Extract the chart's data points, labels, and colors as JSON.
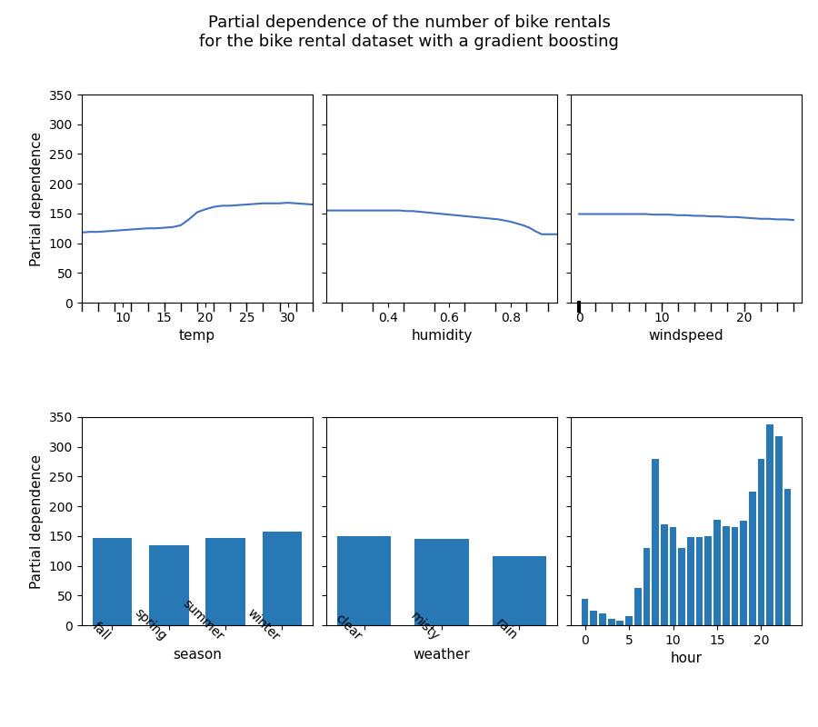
{
  "title": "Partial dependence of the number of bike rentals\nfor the bike rental dataset with a gradient boosting",
  "title_fontsize": 13,
  "ylabel": "Partial dependence",
  "line_color": "#4472C4",
  "bar_color": "#2878b5",
  "ylim_line": [
    0,
    350
  ],
  "ylim_bar": [
    0,
    350
  ],
  "temp_x": [
    5,
    6,
    7,
    8,
    9,
    10,
    11,
    12,
    13,
    14,
    15,
    16,
    17,
    18,
    19,
    20,
    21,
    22,
    23,
    24,
    25,
    26,
    27,
    28,
    29,
    30,
    31,
    32,
    33
  ],
  "temp_y": [
    118,
    119,
    119,
    120,
    121,
    122,
    123,
    124,
    125,
    125,
    126,
    127,
    130,
    140,
    152,
    157,
    161,
    163,
    163,
    164,
    165,
    166,
    167,
    167,
    167,
    168,
    167,
    166,
    165
  ],
  "humidity_x": [
    0.2,
    0.25,
    0.3,
    0.35,
    0.38,
    0.4,
    0.42,
    0.44,
    0.46,
    0.48,
    0.5,
    0.52,
    0.54,
    0.56,
    0.58,
    0.6,
    0.62,
    0.64,
    0.66,
    0.68,
    0.7,
    0.72,
    0.74,
    0.76,
    0.78,
    0.8,
    0.82,
    0.84,
    0.86,
    0.88,
    0.9,
    0.92,
    0.95
  ],
  "humidity_y": [
    155,
    155,
    155,
    155,
    155,
    155,
    155,
    155,
    154,
    154,
    153,
    152,
    151,
    150,
    149,
    148,
    147,
    146,
    145,
    144,
    143,
    142,
    141,
    140,
    138,
    136,
    133,
    130,
    126,
    120,
    115,
    115,
    115
  ],
  "windspeed_x": [
    0,
    1,
    2,
    3,
    4,
    5,
    6,
    7,
    8,
    9,
    10,
    11,
    12,
    13,
    14,
    15,
    16,
    17,
    18,
    19,
    20,
    21,
    22,
    23,
    24,
    25,
    26
  ],
  "windspeed_y": [
    149,
    149,
    149,
    149,
    149,
    149,
    149,
    149,
    149,
    148,
    148,
    148,
    147,
    147,
    146,
    146,
    145,
    145,
    144,
    144,
    143,
    142,
    141,
    141,
    140,
    140,
    139
  ],
  "season_cats": [
    "fall",
    "spring",
    "summer",
    "winter"
  ],
  "season_vals": [
    146,
    134,
    146,
    157
  ],
  "weather_cats": [
    "clear",
    "misty",
    "rain"
  ],
  "weather_vals": [
    150,
    145,
    116
  ],
  "hour_vals": [
    45,
    25,
    20,
    10,
    7,
    15,
    63,
    130,
    280,
    170,
    165,
    130,
    148,
    148,
    150,
    177,
    166,
    165,
    175,
    225,
    280,
    338,
    318,
    230
  ],
  "rug_temp": [
    5,
    7,
    9,
    11,
    13,
    15,
    17,
    19,
    21,
    23,
    25,
    27,
    29,
    31,
    33
  ],
  "rug_hum": [
    0.25,
    0.35,
    0.45,
    0.55,
    0.65,
    0.75,
    0.85,
    0.92
  ],
  "rug_wind_thin": [
    2,
    4,
    6,
    8,
    10,
    12,
    14,
    16,
    18,
    20,
    22,
    24,
    26
  ],
  "rug_wind_thick": [
    0
  ]
}
